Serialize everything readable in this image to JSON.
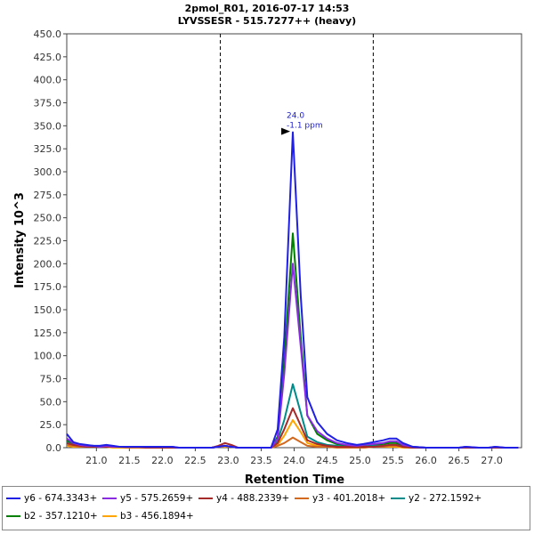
{
  "chart_data": {
    "type": "line",
    "title": "2pmol_R01, 2016-07-17 14:53",
    "subtitle": "LYVSSESR - 515.7277++ (heavy)",
    "xlabel": "Retention Time",
    "ylabel": "Intensity 10^3",
    "xlim": [
      20.55,
      27.45
    ],
    "ylim": [
      0,
      450
    ],
    "xticks": [
      "21.0",
      "21.5",
      "22.0",
      "22.5",
      "23.0",
      "23.5",
      "24.0",
      "24.5",
      "25.0",
      "25.5",
      "26.0",
      "26.5",
      "27.0"
    ],
    "yticks": [
      "0.0",
      "25.0",
      "50.0",
      "75.0",
      "100.0",
      "125.0",
      "150.0",
      "175.0",
      "200.0",
      "225.0",
      "250.0",
      "275.0",
      "300.0",
      "325.0",
      "350.0",
      "375.0",
      "400.0",
      "425.0",
      "450.0"
    ],
    "boundaries": [
      22.88,
      25.2
    ],
    "annotation": {
      "x": 23.98,
      "y": 343,
      "line1": "24.0",
      "line2": "-1.1 ppm"
    },
    "x": [
      20.55,
      20.65,
      20.75,
      20.85,
      20.95,
      21.05,
      21.15,
      21.25,
      21.35,
      21.45,
      21.55,
      21.65,
      21.75,
      21.85,
      21.95,
      22.05,
      22.15,
      22.25,
      22.35,
      22.45,
      22.55,
      22.65,
      22.75,
      22.85,
      22.95,
      23.05,
      23.15,
      23.25,
      23.35,
      23.45,
      23.55,
      23.65,
      23.75,
      23.85,
      23.98,
      24.1,
      24.2,
      24.35,
      24.5,
      24.65,
      24.8,
      24.95,
      25.05,
      25.2,
      25.35,
      25.45,
      25.55,
      25.65,
      25.8,
      26.0,
      26.2,
      26.4,
      26.5,
      26.6,
      26.8,
      26.95,
      27.05,
      27.2,
      27.4
    ],
    "series": [
      {
        "name": "y6 - 674.3343+",
        "color": "#1f1fe6",
        "values": [
          15,
          6,
          4,
          3,
          2,
          2,
          3,
          2,
          1,
          1,
          1,
          1,
          1,
          1,
          1,
          1,
          1,
          0,
          0,
          0,
          0,
          0,
          0,
          1,
          2,
          1,
          0,
          0,
          0,
          0,
          0,
          0,
          20,
          120,
          343,
          165,
          55,
          28,
          15,
          8,
          5,
          3,
          4,
          6,
          8,
          10,
          10,
          5,
          1,
          0,
          0,
          0,
          0,
          1,
          0,
          0,
          1,
          0,
          0
        ]
      },
      {
        "name": "y5 - 575.2659+",
        "color": "#8a2be2",
        "values": [
          10,
          5,
          3,
          2,
          2,
          1,
          2,
          1,
          1,
          1,
          1,
          1,
          1,
          1,
          1,
          1,
          1,
          0,
          0,
          0,
          0,
          0,
          0,
          1,
          2,
          1,
          0,
          0,
          0,
          0,
          0,
          0,
          10,
          80,
          200,
          110,
          35,
          18,
          10,
          5,
          3,
          2,
          3,
          4,
          5,
          7,
          7,
          3,
          1,
          0,
          0,
          0,
          0,
          1,
          0,
          0,
          1,
          0,
          0
        ]
      },
      {
        "name": "y4 - 488.2339+",
        "color": "#a52a2a",
        "values": [
          5,
          3,
          2,
          1,
          1,
          1,
          1,
          1,
          1,
          1,
          1,
          1,
          0,
          0,
          0,
          0,
          0,
          0,
          0,
          0,
          0,
          0,
          0,
          2,
          5,
          3,
          0,
          0,
          0,
          0,
          0,
          0,
          5,
          20,
          43,
          24,
          8,
          4,
          2,
          1,
          1,
          1,
          1,
          1,
          2,
          3,
          3,
          1,
          0,
          0,
          0,
          0,
          0,
          0,
          0,
          0,
          0,
          0,
          0
        ]
      },
      {
        "name": "y3 - 401.2018+",
        "color": "#d2691e",
        "values": [
          3,
          2,
          1,
          1,
          1,
          1,
          1,
          1,
          1,
          0,
          0,
          0,
          0,
          0,
          0,
          0,
          0,
          0,
          0,
          0,
          0,
          0,
          0,
          1,
          2,
          1,
          0,
          0,
          0,
          0,
          0,
          0,
          2,
          5,
          11,
          6,
          2,
          1,
          1,
          0,
          0,
          0,
          0,
          1,
          1,
          2,
          2,
          1,
          0,
          0,
          0,
          0,
          0,
          0,
          0,
          0,
          0,
          0,
          0
        ]
      },
      {
        "name": "y2 - 272.1592+",
        "color": "#008b8b",
        "values": [
          6,
          3,
          2,
          2,
          1,
          1,
          1,
          1,
          1,
          1,
          1,
          0,
          0,
          0,
          0,
          0,
          0,
          0,
          0,
          0,
          0,
          0,
          0,
          1,
          2,
          1,
          0,
          0,
          0,
          0,
          0,
          0,
          8,
          30,
          69,
          38,
          12,
          6,
          3,
          2,
          1,
          1,
          1,
          2,
          2,
          3,
          3,
          1,
          0,
          0,
          0,
          0,
          0,
          0,
          0,
          0,
          0,
          0,
          0
        ]
      },
      {
        "name": "b2 - 357.1210+",
        "color": "#008000",
        "values": [
          8,
          4,
          3,
          2,
          2,
          1,
          2,
          1,
          1,
          1,
          1,
          1,
          1,
          1,
          1,
          0,
          0,
          0,
          0,
          0,
          0,
          0,
          0,
          1,
          2,
          1,
          0,
          0,
          0,
          0,
          0,
          0,
          12,
          95,
          233,
          120,
          35,
          15,
          8,
          4,
          2,
          2,
          2,
          3,
          4,
          5,
          5,
          2,
          1,
          0,
          0,
          0,
          0,
          0,
          0,
          0,
          0,
          0,
          0
        ]
      },
      {
        "name": "b3 - 456.1894+",
        "color": "#ffa500",
        "values": [
          2,
          1,
          1,
          1,
          1,
          1,
          1,
          0,
          0,
          0,
          0,
          0,
          0,
          0,
          0,
          0,
          0,
          0,
          0,
          0,
          0,
          0,
          0,
          1,
          1,
          1,
          0,
          0,
          0,
          0,
          0,
          0,
          3,
          13,
          30,
          17,
          5,
          2,
          1,
          1,
          0,
          0,
          0,
          1,
          1,
          1,
          1,
          0,
          0,
          0,
          0,
          0,
          0,
          0,
          0,
          0,
          0,
          0,
          0
        ]
      }
    ]
  }
}
